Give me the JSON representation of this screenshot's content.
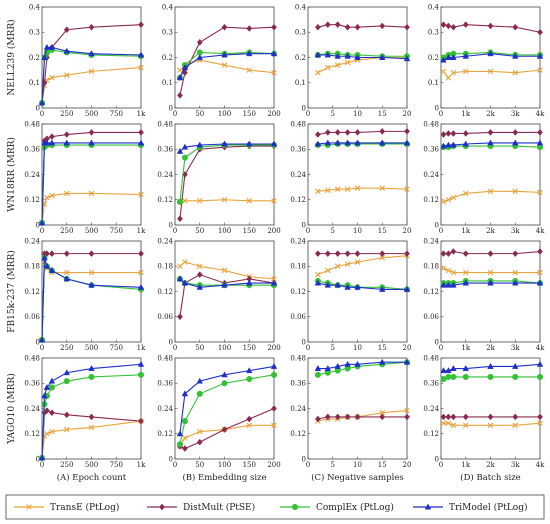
{
  "colors": {
    "TransE": "#e8a33c",
    "DistMult": "#8b2a4f",
    "ComplEx": "#34c234",
    "TriModel": "#1f2fc9"
  },
  "legend": [
    {
      "key": "TransE",
      "label": "TransE (PtLog)",
      "marker": "x"
    },
    {
      "key": "DistMult",
      "label": "DistMult (PtSE)",
      "marker": "diamond"
    },
    {
      "key": "ComplEx",
      "label": "ComplEx (PtLog)",
      "marker": "circle"
    },
    {
      "key": "TriModel",
      "label": "TriModel (PtLog)",
      "marker": "triangle"
    }
  ],
  "chart_data": {
    "type": "line",
    "rows": [
      {
        "ylabel": "NELL239 (MRR)",
        "ylim": [
          0,
          0.4
        ],
        "yticks": [
          "0",
          "0.1",
          "0.2",
          "0.3",
          "0.4"
        ],
        "ytick_values": [
          0,
          0.1,
          0.2,
          0.3,
          0.4
        ]
      },
      {
        "ylabel": "WN18RR (MRR)",
        "ylim": [
          0,
          0.48
        ],
        "yticks": [
          "0",
          "0.12",
          "0.24",
          "0.36",
          "0.48"
        ],
        "ytick_values": [
          0,
          0.12,
          0.24,
          0.36,
          0.48
        ]
      },
      {
        "ylabel": "FB15k-237 (MRR)",
        "ylim": [
          0,
          0.24
        ],
        "yticks": [
          "0",
          "0.06",
          "0.12",
          "0.18",
          "0.24"
        ],
        "ytick_values": [
          0,
          0.06,
          0.12,
          0.18,
          0.24
        ]
      },
      {
        "ylabel": "YAGO10 (MRR)",
        "ylim": [
          0,
          0.48
        ],
        "yticks": [
          "0",
          "0.12",
          "0.24",
          "0.36",
          "0.48"
        ],
        "ytick_values": [
          0,
          0.12,
          0.24,
          0.36,
          0.48
        ]
      }
    ],
    "cols": [
      {
        "xlabel": "(A) Epoch count",
        "xlim": [
          0,
          1000
        ],
        "xticks": [
          "0",
          "250",
          "500",
          "750",
          "1k"
        ],
        "xtick_values": [
          0,
          250,
          500,
          750,
          1000
        ]
      },
      {
        "xlabel": "(B) Embedding size",
        "xlim": [
          0,
          200
        ],
        "xticks": [
          "0",
          "50",
          "100",
          "150",
          "200"
        ],
        "xtick_values": [
          0,
          50,
          100,
          150,
          200
        ]
      },
      {
        "xlabel": "(C) Negative samples",
        "xlim": [
          0,
          20
        ],
        "xticks": [
          "0",
          "5",
          "10",
          "15",
          "20"
        ],
        "xtick_values": [
          0,
          5,
          10,
          15,
          20
        ]
      },
      {
        "xlabel": "(D) Batch size",
        "xlim": [
          0,
          4000
        ],
        "xticks": [
          "0",
          "1k",
          "2k",
          "3k",
          "4k"
        ],
        "xtick_values": [
          0,
          1000,
          2000,
          3000,
          4000
        ]
      }
    ],
    "panels": [
      [
        {
          "x": [
            0,
            25,
            50,
            100,
            250,
            500,
            1000
          ],
          "series": {
            "TransE": [
              0.02,
              0.09,
              0.11,
              0.12,
              0.13,
              0.145,
              0.16
            ],
            "DistMult": [
              0.02,
              0.1,
              0.2,
              0.24,
              0.31,
              0.32,
              0.33
            ],
            "ComplEx": [
              0.02,
              0.2,
              0.22,
              0.23,
              0.22,
              0.21,
              0.205
            ],
            "TriModel": [
              0.02,
              0.2,
              0.24,
              0.24,
              0.225,
              0.215,
              0.21
            ]
          }
        },
        {
          "x": [
            10,
            20,
            50,
            100,
            150,
            200
          ],
          "series": {
            "TransE": [
              0.15,
              0.17,
              0.19,
              0.17,
              0.15,
              0.14
            ],
            "DistMult": [
              0.05,
              0.14,
              0.26,
              0.32,
              0.315,
              0.32
            ],
            "ComplEx": [
              0.12,
              0.17,
              0.22,
              0.215,
              0.22,
              0.215
            ],
            "TriModel": [
              0.12,
              0.16,
              0.2,
              0.21,
              0.215,
              0.215
            ]
          }
        },
        {
          "x": [
            2,
            4,
            6,
            8,
            10,
            15,
            20
          ],
          "series": {
            "TransE": [
              0.14,
              0.16,
              0.17,
              0.18,
              0.19,
              0.2,
              0.2
            ],
            "DistMult": [
              0.32,
              0.33,
              0.33,
              0.32,
              0.32,
              0.325,
              0.32
            ],
            "ComplEx": [
              0.21,
              0.215,
              0.215,
              0.21,
              0.21,
              0.205,
              0.205
            ],
            "TriModel": [
              0.21,
              0.21,
              0.205,
              0.205,
              0.2,
              0.2,
              0.195
            ]
          }
        },
        {
          "x": [
            100,
            300,
            500,
            1000,
            2000,
            3000,
            4000
          ],
          "series": {
            "TransE": [
              0.145,
              0.12,
              0.14,
              0.145,
              0.145,
              0.14,
              0.15
            ],
            "DistMult": [
              0.33,
              0.325,
              0.32,
              0.33,
              0.325,
              0.32,
              0.3
            ],
            "ComplEx": [
              0.2,
              0.21,
              0.215,
              0.215,
              0.22,
              0.21,
              0.21
            ],
            "TriModel": [
              0.19,
              0.2,
              0.2,
              0.205,
              0.215,
              0.205,
              0.205
            ]
          }
        }
      ],
      [
        {
          "x": [
            0,
            25,
            50,
            100,
            250,
            500,
            1000
          ],
          "series": {
            "TransE": [
              0.01,
              0.1,
              0.13,
              0.14,
              0.15,
              0.15,
              0.145
            ],
            "DistMult": [
              0.01,
              0.4,
              0.41,
              0.42,
              0.43,
              0.44,
              0.44
            ],
            "ComplEx": [
              0.01,
              0.37,
              0.38,
              0.38,
              0.38,
              0.38,
              0.38
            ],
            "TriModel": [
              0.01,
              0.39,
              0.39,
              0.39,
              0.39,
              0.39,
              0.39
            ]
          }
        },
        {
          "x": [
            10,
            20,
            50,
            100,
            150,
            200
          ],
          "series": {
            "TransE": [
              0.11,
              0.115,
              0.115,
              0.12,
              0.115,
              0.115
            ],
            "DistMult": [
              0.03,
              0.24,
              0.36,
              0.37,
              0.375,
              0.375
            ],
            "ComplEx": [
              0.11,
              0.32,
              0.37,
              0.38,
              0.38,
              0.38
            ],
            "TriModel": [
              0.35,
              0.37,
              0.38,
              0.385,
              0.385,
              0.385
            ]
          }
        },
        {
          "x": [
            2,
            4,
            6,
            8,
            10,
            15,
            20
          ],
          "series": {
            "TransE": [
              0.16,
              0.165,
              0.17,
              0.17,
              0.175,
              0.175,
              0.17
            ],
            "DistMult": [
              0.43,
              0.44,
              0.44,
              0.44,
              0.44,
              0.445,
              0.445
            ],
            "ComplEx": [
              0.38,
              0.38,
              0.385,
              0.385,
              0.385,
              0.385,
              0.385
            ],
            "TriModel": [
              0.385,
              0.39,
              0.39,
              0.39,
              0.39,
              0.39,
              0.39
            ]
          }
        },
        {
          "x": [
            100,
            300,
            500,
            1000,
            2000,
            3000,
            4000
          ],
          "series": {
            "TransE": [
              0.11,
              0.12,
              0.13,
              0.15,
              0.16,
              0.16,
              0.155
            ],
            "DistMult": [
              0.43,
              0.435,
              0.435,
              0.435,
              0.44,
              0.44,
              0.44
            ],
            "ComplEx": [
              0.37,
              0.37,
              0.375,
              0.375,
              0.375,
              0.375,
              0.37
            ],
            "TriModel": [
              0.375,
              0.38,
              0.38,
              0.385,
              0.39,
              0.39,
              0.39
            ]
          }
        }
      ],
      [
        {
          "x": [
            0,
            25,
            50,
            100,
            250,
            500,
            1000
          ],
          "series": {
            "TransE": [
              0.005,
              0.19,
              0.175,
              0.165,
              0.165,
              0.165,
              0.165
            ],
            "DistMult": [
              0.005,
              0.21,
              0.21,
              0.21,
              0.21,
              0.21,
              0.21
            ],
            "ComplEx": [
              0.005,
              0.2,
              0.18,
              0.17,
              0.15,
              0.135,
              0.125
            ],
            "TriModel": [
              0.005,
              0.2,
              0.18,
              0.17,
              0.15,
              0.135,
              0.13
            ]
          }
        },
        {
          "x": [
            10,
            20,
            50,
            100,
            150,
            200
          ],
          "series": {
            "TransE": [
              0.18,
              0.19,
              0.18,
              0.17,
              0.155,
              0.15
            ],
            "DistMult": [
              0.06,
              0.14,
              0.16,
              0.14,
              0.15,
              0.14
            ],
            "ComplEx": [
              0.15,
              0.14,
              0.135,
              0.135,
              0.135,
              0.135
            ],
            "TriModel": [
              0.15,
              0.14,
              0.13,
              0.135,
              0.14,
              0.14
            ]
          }
        },
        {
          "x": [
            2,
            4,
            6,
            8,
            10,
            15,
            20
          ],
          "series": {
            "TransE": [
              0.16,
              0.17,
              0.18,
              0.185,
              0.19,
              0.2,
              0.205
            ],
            "DistMult": [
              0.21,
              0.21,
              0.21,
              0.21,
              0.21,
              0.21,
              0.21
            ],
            "ComplEx": [
              0.145,
              0.14,
              0.135,
              0.135,
              0.13,
              0.13,
              0.125
            ],
            "TriModel": [
              0.14,
              0.135,
              0.135,
              0.13,
              0.13,
              0.125,
              0.125
            ]
          }
        },
        {
          "x": [
            100,
            300,
            500,
            1000,
            2000,
            3000,
            4000
          ],
          "series": {
            "TransE": [
              0.175,
              0.17,
              0.165,
              0.165,
              0.165,
              0.165,
              0.165
            ],
            "DistMult": [
              0.21,
              0.21,
              0.215,
              0.21,
              0.21,
              0.21,
              0.215
            ],
            "ComplEx": [
              0.14,
              0.14,
              0.14,
              0.145,
              0.145,
              0.145,
              0.14
            ],
            "TriModel": [
              0.135,
              0.135,
              0.135,
              0.14,
              0.14,
              0.14,
              0.14
            ]
          }
        }
      ],
      [
        {
          "x": [
            0,
            25,
            50,
            100,
            250,
            500,
            1000
          ],
          "series": {
            "TransE": [
              0.005,
              0.11,
              0.12,
              0.13,
              0.14,
              0.15,
              0.18
            ],
            "DistMult": [
              0.005,
              0.22,
              0.23,
              0.22,
              0.21,
              0.2,
              0.18
            ],
            "ComplEx": [
              0.005,
              0.26,
              0.3,
              0.34,
              0.37,
              0.39,
              0.4
            ],
            "TriModel": [
              0.005,
              0.3,
              0.34,
              0.37,
              0.41,
              0.43,
              0.45
            ]
          }
        },
        {
          "x": [
            10,
            20,
            50,
            100,
            150,
            200
          ],
          "series": {
            "TransE": [
              0.06,
              0.1,
              0.13,
              0.14,
              0.16,
              0.16
            ],
            "DistMult": [
              0.06,
              0.05,
              0.08,
              0.14,
              0.19,
              0.24
            ],
            "ComplEx": [
              0.07,
              0.18,
              0.31,
              0.36,
              0.38,
              0.4
            ],
            "TriModel": [
              0.12,
              0.31,
              0.37,
              0.4,
              0.42,
              0.44
            ]
          }
        },
        {
          "x": [
            2,
            4,
            6,
            8,
            10,
            15,
            20
          ],
          "series": {
            "TransE": [
              0.18,
              0.19,
              0.19,
              0.2,
              0.2,
              0.22,
              0.23
            ],
            "DistMult": [
              0.19,
              0.2,
              0.2,
              0.2,
              0.2,
              0.2,
              0.2
            ],
            "ComplEx": [
              0.4,
              0.41,
              0.42,
              0.43,
              0.44,
              0.45,
              0.46
            ],
            "TriModel": [
              0.43,
              0.43,
              0.44,
              0.45,
              0.45,
              0.46,
              0.46
            ]
          }
        },
        {
          "x": [
            100,
            300,
            500,
            1000,
            2000,
            3000,
            4000
          ],
          "series": {
            "TransE": [
              0.17,
              0.17,
              0.16,
              0.16,
              0.16,
              0.16,
              0.17
            ],
            "DistMult": [
              0.2,
              0.2,
              0.2,
              0.2,
              0.2,
              0.2,
              0.2
            ],
            "ComplEx": [
              0.38,
              0.39,
              0.39,
              0.39,
              0.39,
              0.39,
              0.39
            ],
            "TriModel": [
              0.42,
              0.42,
              0.43,
              0.43,
              0.44,
              0.44,
              0.45
            ]
          }
        }
      ]
    ]
  }
}
